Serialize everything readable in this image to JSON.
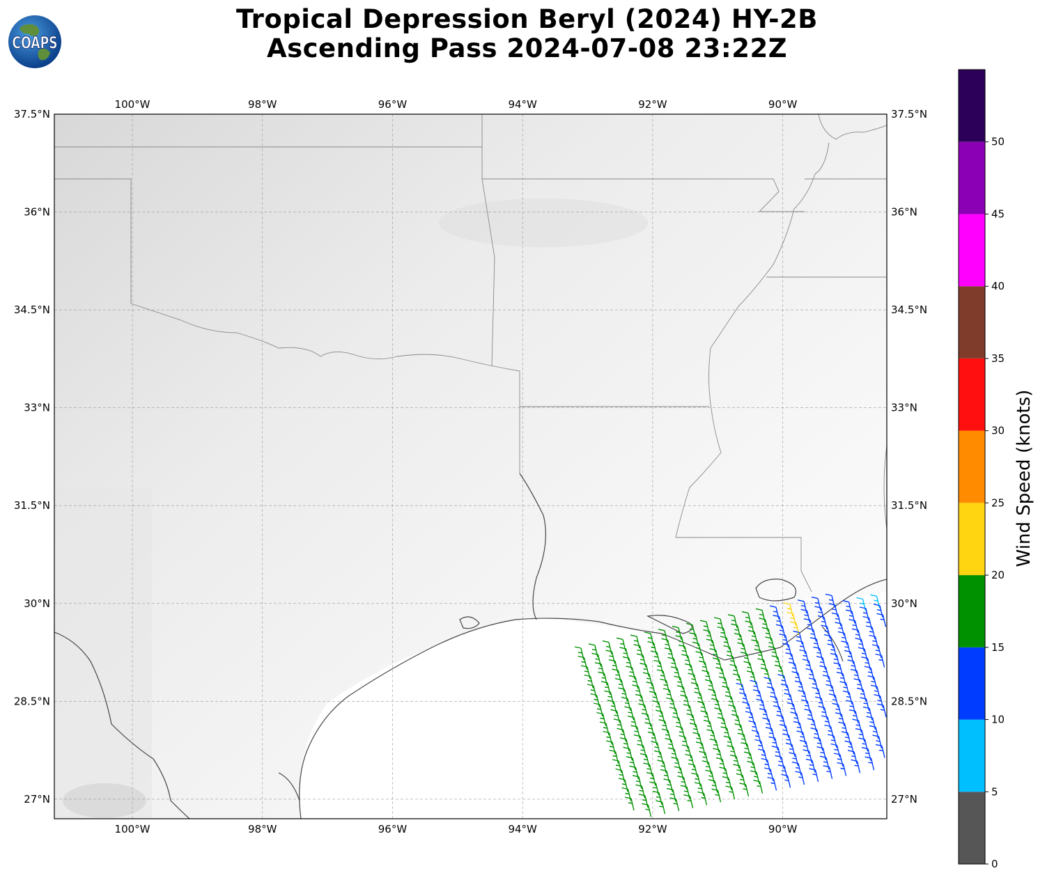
{
  "title": {
    "line1": "Tropical Depression Beryl (2024) HY-2B",
    "line2": "Ascending Pass 2024-07-08 23:22Z"
  },
  "logo": {
    "text": "COAPS",
    "icon": "earth-globe-icon"
  },
  "map": {
    "lon_ticks": [
      "100°W",
      "98°W",
      "96°W",
      "94°W",
      "92°W",
      "90°W"
    ],
    "lat_ticks": [
      "37.5°N",
      "36°N",
      "34.5°N",
      "33°N",
      "31.5°N",
      "30°N",
      "28.5°N",
      "27°N"
    ],
    "lon_values": [
      -100,
      -98,
      -96,
      -94,
      -92,
      -90
    ],
    "lat_values": [
      37.5,
      36,
      34.5,
      33,
      31.5,
      30,
      28.5,
      27
    ],
    "extent": {
      "lon": [
        -101.2,
        -88.4
      ],
      "lat": [
        26.7,
        37.5
      ]
    },
    "gridlines": true,
    "background": "grayscale satellite imagery"
  },
  "colorbar": {
    "label": "Wind Speed (knots)",
    "ticks": [
      "0",
      "5",
      "10",
      "15",
      "20",
      "25",
      "30",
      "35",
      "40",
      "45",
      "50"
    ],
    "bins": [
      {
        "min": 0,
        "max": 5,
        "color": "#565656"
      },
      {
        "min": 5,
        "max": 10,
        "color": "#00bfff"
      },
      {
        "min": 10,
        "max": 15,
        "color": "#003cff"
      },
      {
        "min": 15,
        "max": 20,
        "color": "#009100"
      },
      {
        "min": 20,
        "max": 25,
        "color": "#ffd511"
      },
      {
        "min": 25,
        "max": 30,
        "color": "#ff8c00"
      },
      {
        "min": 30,
        "max": 35,
        "color": "#ff0f0f"
      },
      {
        "min": 35,
        "max": 40,
        "color": "#803c2a"
      },
      {
        "min": 40,
        "max": 45,
        "color": "#ff00ff"
      },
      {
        "min": 45,
        "max": 50,
        "color": "#8b00b5"
      },
      {
        "min": 50,
        "max": 55,
        "color": "#2c0059"
      }
    ]
  },
  "wind_barbs": {
    "description_note": "",
    "speed_bins": {
      "green": [
        15,
        20
      ],
      "blue": [
        10,
        15
      ],
      "yellow": [
        20,
        25
      ],
      "cyan": [
        5,
        10
      ]
    }
  }
}
